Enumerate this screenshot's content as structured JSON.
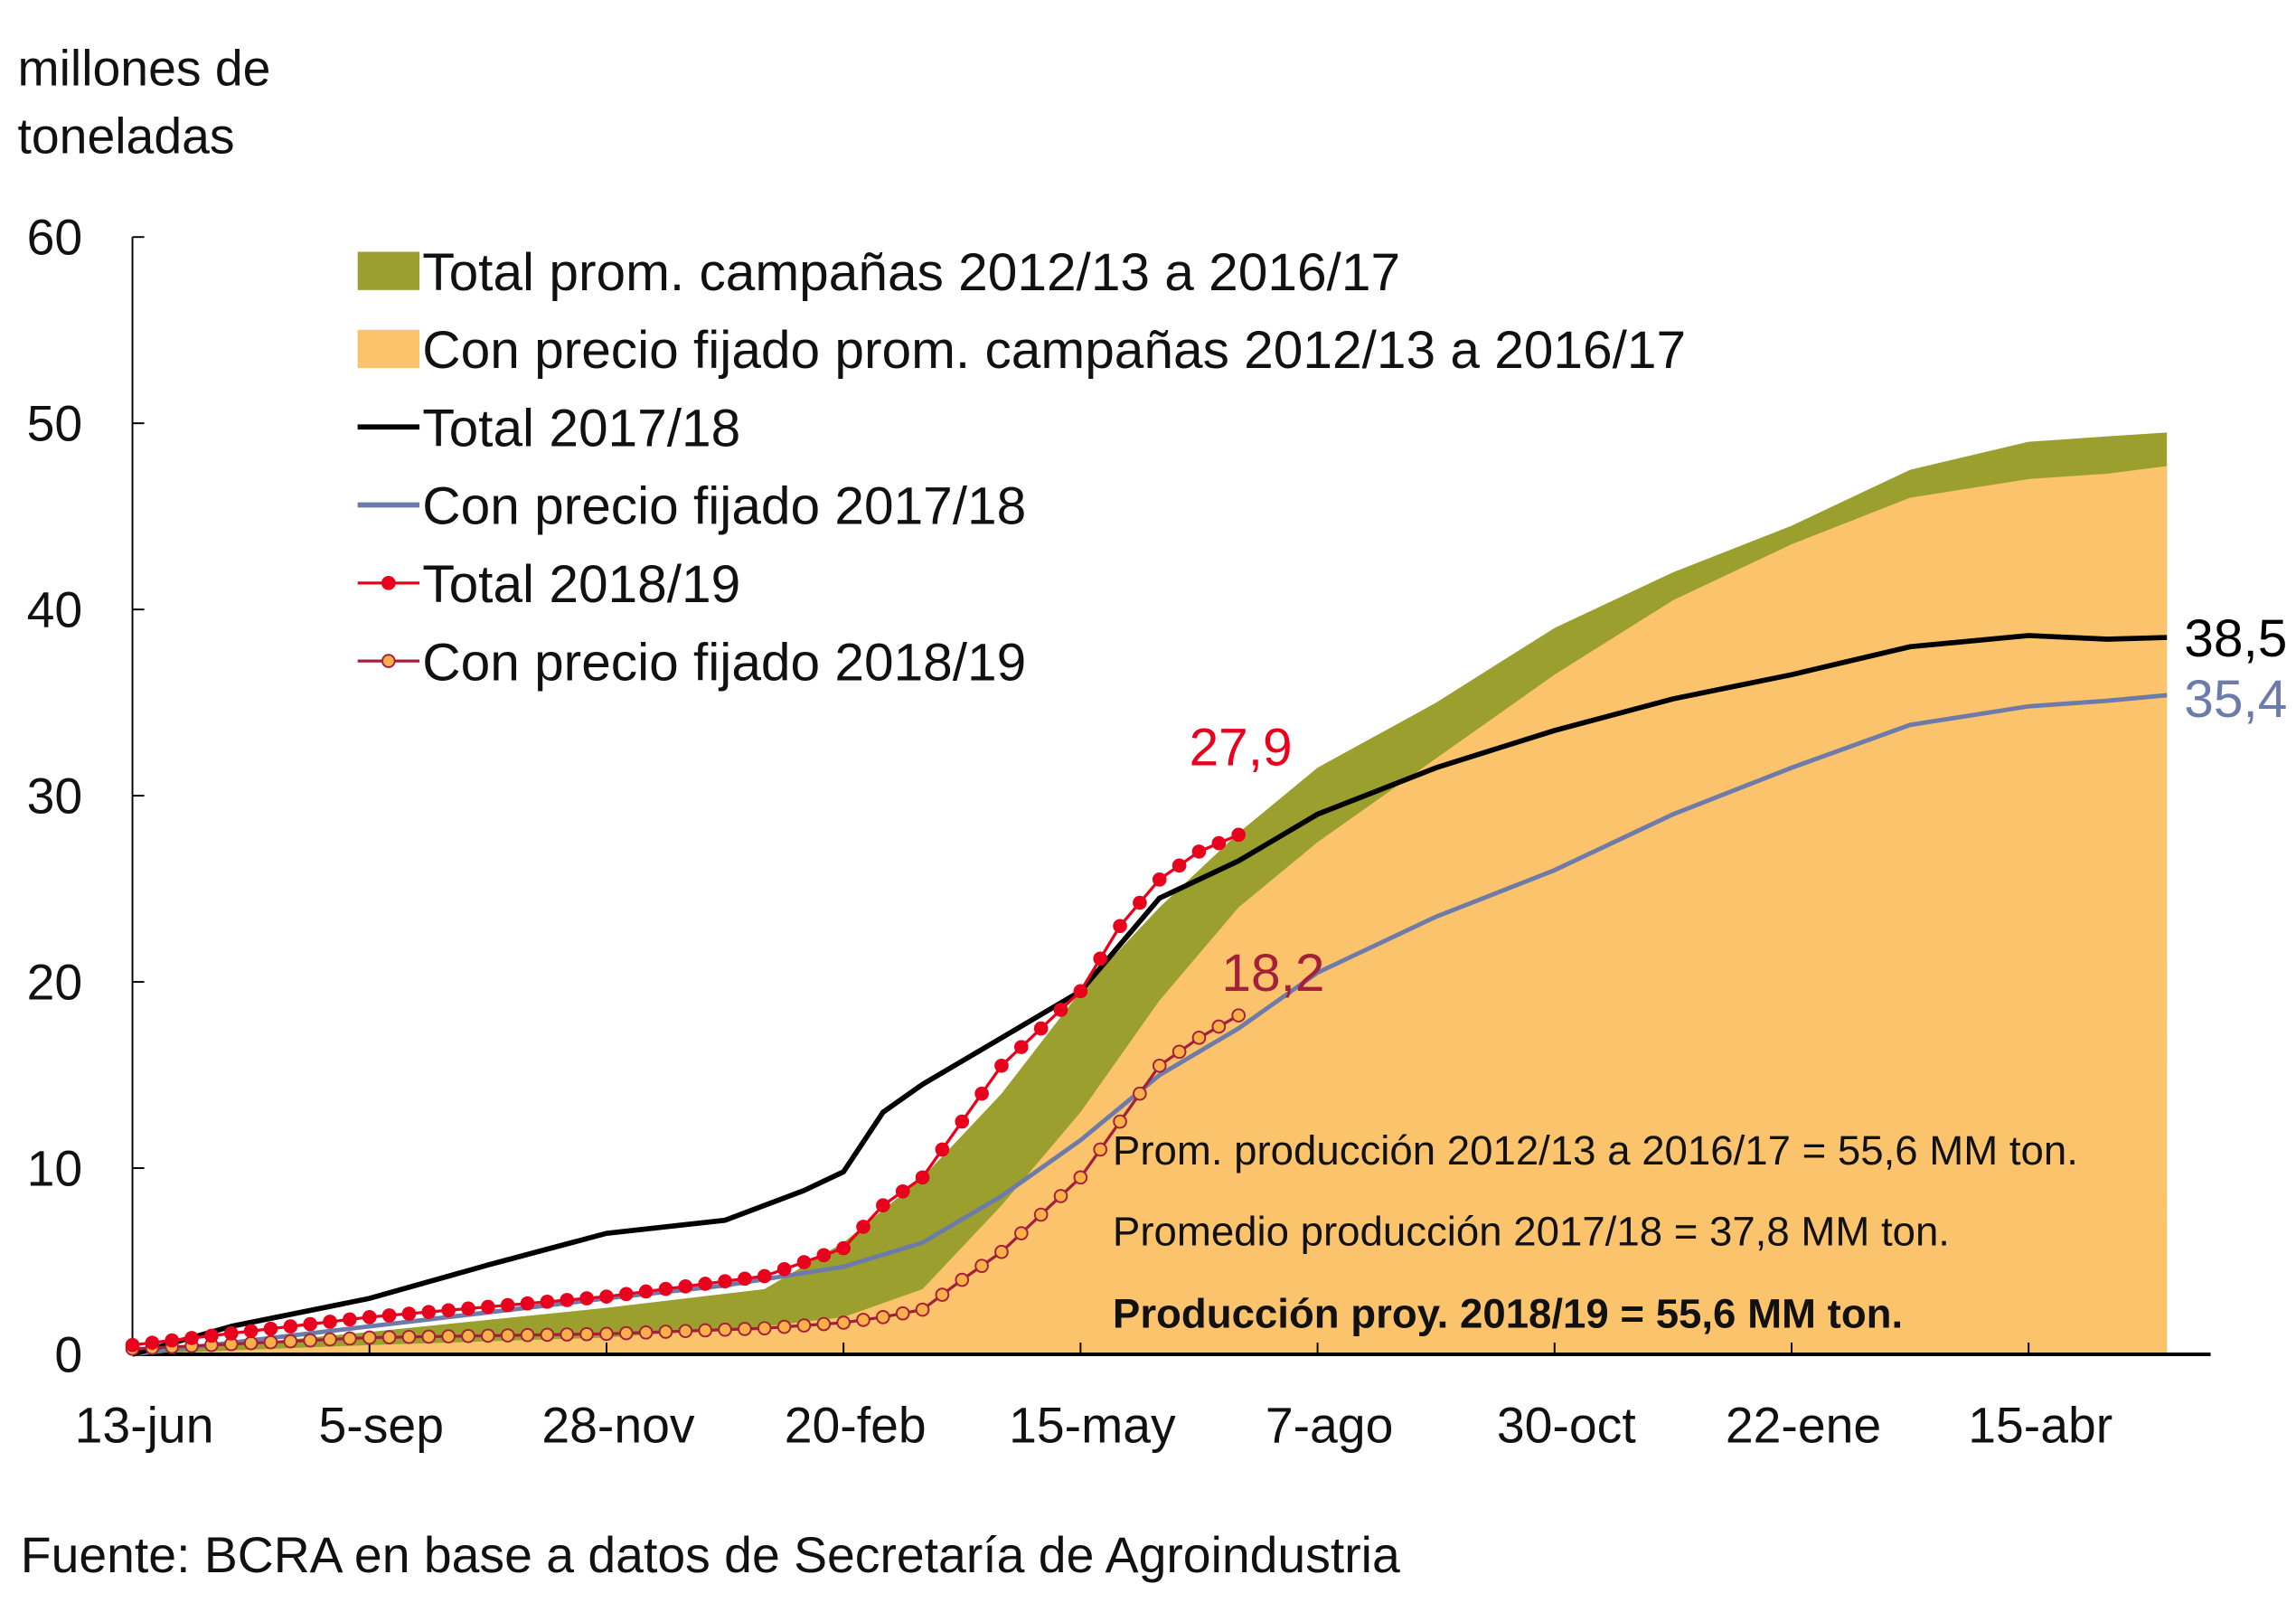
{
  "chart_data": {
    "type": "area",
    "ylabel_lines": [
      "millones de",
      "toneladas"
    ],
    "ylim": [
      0,
      60
    ],
    "yticks": [
      "0",
      "10",
      "20",
      "30",
      "40",
      "50",
      "60"
    ],
    "ytick_values": [
      0,
      10,
      20,
      30,
      40,
      50,
      60
    ],
    "x_unit": "weeks since 13-jun",
    "xlim": [
      0,
      103
    ],
    "xticks": [
      "13-jun",
      "5-sep",
      "28-nov",
      "20-feb",
      "15-may",
      "7-ago",
      "30-oct",
      "22-ene",
      "15-abr"
    ],
    "xtick_weeks": [
      0,
      12,
      24,
      36,
      48,
      60,
      72,
      84,
      96
    ],
    "series": [
      {
        "name": "Total prom. campañas 2012/13 a 2016/17",
        "kind": "band",
        "color": "#9a9f2e",
        "x": [
          0,
          12,
          24,
          32,
          36,
          40,
          44,
          48,
          52,
          56,
          60,
          66,
          72,
          78,
          84,
          90,
          96,
          100,
          103
        ],
        "y": [
          0,
          1.2,
          2.5,
          3.5,
          6,
          9.5,
          14,
          19.5,
          24,
          28,
          31.5,
          35,
          39,
          42,
          44.5,
          47.5,
          49,
          49.3,
          49.5
        ]
      },
      {
        "name": "Con precio fijado prom. campañas 2012/13 a 2016/17",
        "kind": "area",
        "color": "#fbc36b",
        "x": [
          0,
          12,
          24,
          32,
          36,
          40,
          44,
          48,
          52,
          56,
          60,
          66,
          72,
          78,
          84,
          90,
          96,
          100,
          103
        ],
        "y": [
          0,
          0.5,
          0.9,
          1.5,
          2,
          3.5,
          8,
          13,
          19,
          24,
          27.5,
          32,
          36.5,
          40.5,
          43.5,
          46,
          47,
          47.3,
          47.7
        ]
      },
      {
        "name": "Total 2017/18",
        "kind": "line",
        "color": "#000000",
        "x": [
          0,
          5,
          12,
          18,
          24,
          30,
          34,
          36,
          38,
          40,
          44,
          48,
          52,
          56,
          60,
          66,
          72,
          78,
          84,
          90,
          96,
          100,
          103
        ],
        "y": [
          0,
          1.5,
          3,
          4.8,
          6.5,
          7.2,
          8.8,
          9.8,
          13,
          14.5,
          17,
          19.5,
          24.5,
          26.5,
          29,
          31.5,
          33.5,
          35.2,
          36.5,
          38,
          38.6,
          38.4,
          38.5
        ],
        "end_label": "38,5"
      },
      {
        "name": "Con precio fijado 2017/18",
        "kind": "line",
        "color": "#6d7bab",
        "x": [
          0,
          12,
          24,
          30,
          36,
          40,
          44,
          48,
          52,
          56,
          60,
          66,
          72,
          78,
          84,
          90,
          96,
          100,
          103
        ],
        "y": [
          0,
          1.5,
          3,
          3.7,
          4.7,
          6,
          8.5,
          11.5,
          15,
          17.5,
          20.5,
          23.5,
          26,
          29,
          31.5,
          33.8,
          34.8,
          35.1,
          35.4
        ],
        "end_label": "35,4"
      },
      {
        "name": "Total 2018/19",
        "kind": "line-markers",
        "color": "#e8001c",
        "x": [
          0,
          12,
          24,
          32,
          36,
          38,
          40,
          42,
          44,
          46,
          48,
          50,
          52,
          54,
          56
        ],
        "y": [
          0.5,
          2,
          3.1,
          4.2,
          5.7,
          8,
          9.5,
          12.5,
          15.5,
          17.5,
          19.5,
          23,
          25.5,
          27,
          27.9
        ],
        "end_label": "27,9"
      },
      {
        "name": "Con precio fijado 2018/19",
        "kind": "line-markers",
        "color": "#a3203a",
        "marker_fill": "#fbb04a",
        "x": [
          0,
          12,
          24,
          32,
          36,
          38,
          40,
          42,
          44,
          46,
          48,
          50,
          52,
          54,
          56
        ],
        "y": [
          0.3,
          0.9,
          1.1,
          1.4,
          1.7,
          2,
          2.4,
          4,
          5.5,
          7.5,
          9.5,
          12.5,
          15.5,
          17,
          18.2
        ],
        "end_label": "18,2"
      }
    ],
    "legend_position": "top-left",
    "annotations": [
      "Prom. producción 2012/13 a 2016/17 = 55,6 MM ton.",
      "Promedio producción 2017/18 = 37,8 MM ton.",
      "Producción proy. 2018/19 = 55,6 MM ton."
    ],
    "source": "Fuente: BCRA en base a datos de Secretaría de Agroindustria"
  }
}
